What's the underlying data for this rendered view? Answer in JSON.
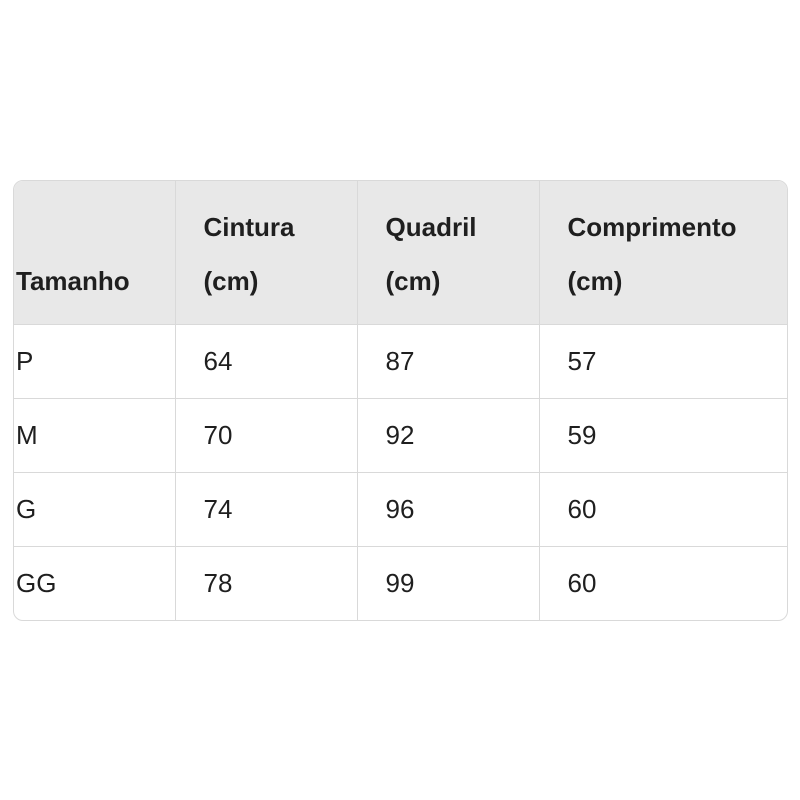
{
  "table": {
    "headers": [
      "Tamanho",
      "Cintura (cm)",
      "Quadril (cm)",
      "Comprimento (cm)"
    ],
    "rows": [
      [
        "P",
        "64",
        "87",
        "57"
      ],
      [
        "M",
        "70",
        "92",
        "59"
      ],
      [
        "G",
        "74",
        "96",
        "60"
      ],
      [
        "GG",
        "78",
        "99",
        "60"
      ]
    ]
  },
  "colors": {
    "header_bg": "#e8e8e8",
    "border": "#d9d9d9"
  }
}
